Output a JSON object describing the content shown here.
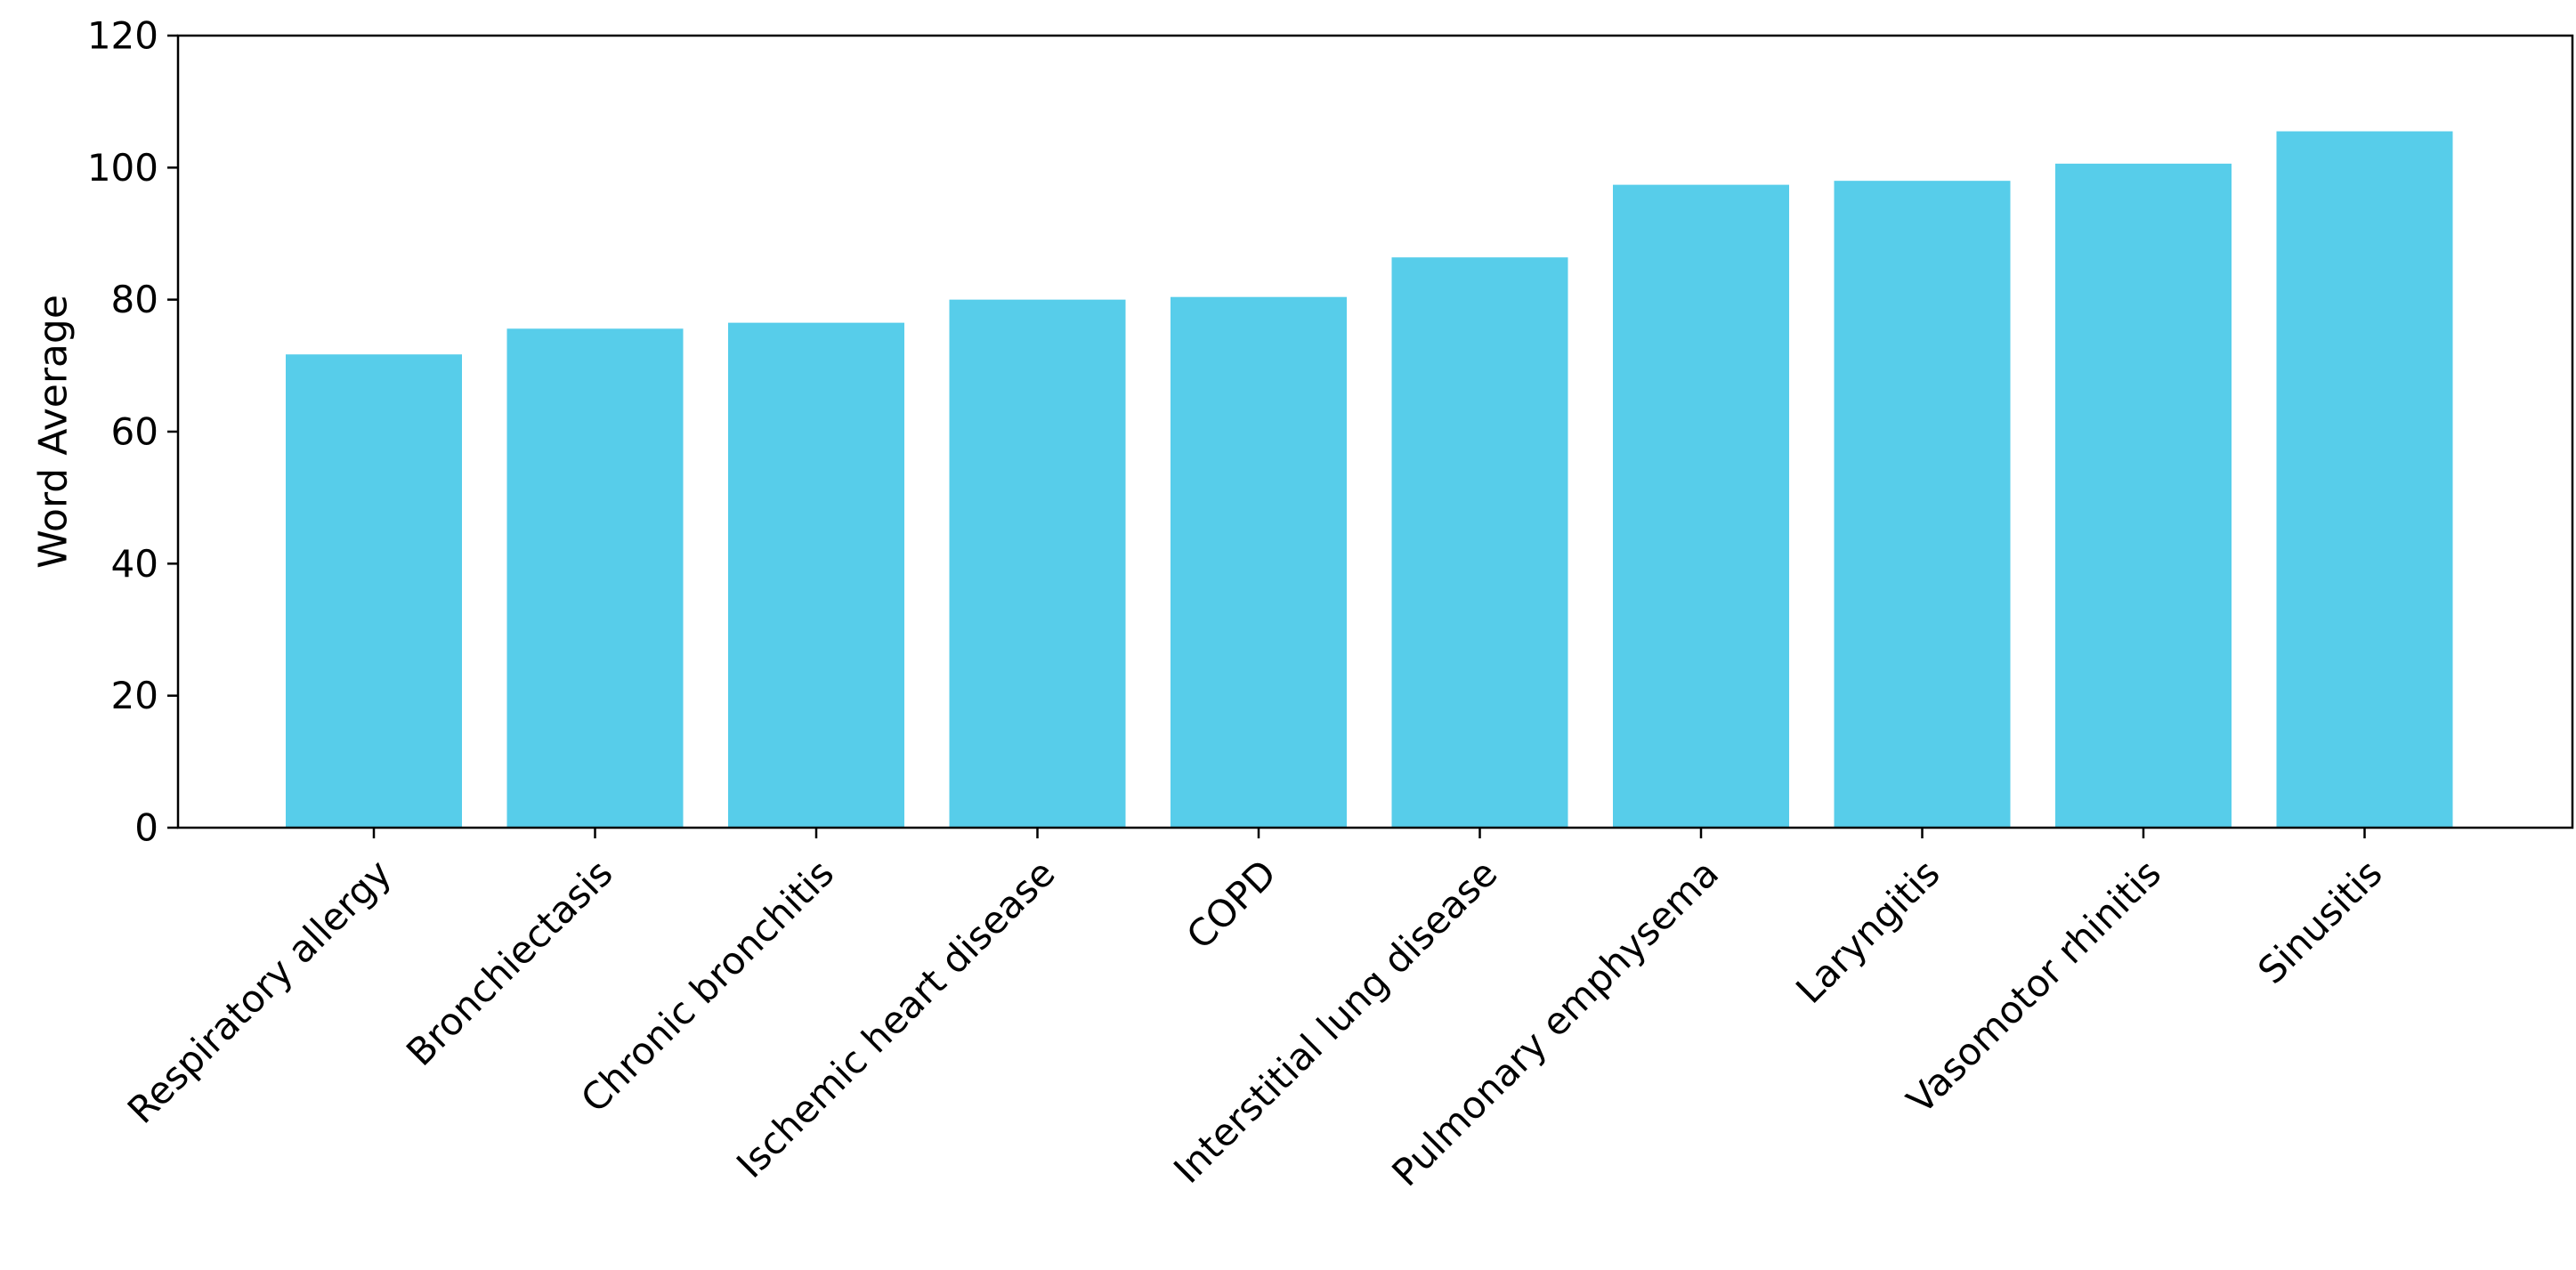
{
  "chart_data": {
    "type": "bar",
    "categories": [
      "Respiratory allergy",
      "Bronchiectasis",
      "Chronic bronchitis",
      "Ischemic heart disease",
      "COPD",
      "Interstitial lung disease",
      "Pulmonary emphysema",
      "Laryngitis",
      "Vasomotor rhinitis",
      "Sinusitis"
    ],
    "values": [
      71.7,
      75.6,
      76.5,
      80.0,
      80.4,
      86.4,
      97.4,
      98.0,
      100.6,
      105.5
    ],
    "title": "",
    "xlabel": "",
    "ylabel": "Word Average",
    "ylim": [
      0,
      120
    ],
    "yticks": [
      0,
      20,
      40,
      60,
      80,
      100,
      120
    ],
    "bar_color": "#57cdea",
    "grid": false,
    "legend": "none"
  }
}
